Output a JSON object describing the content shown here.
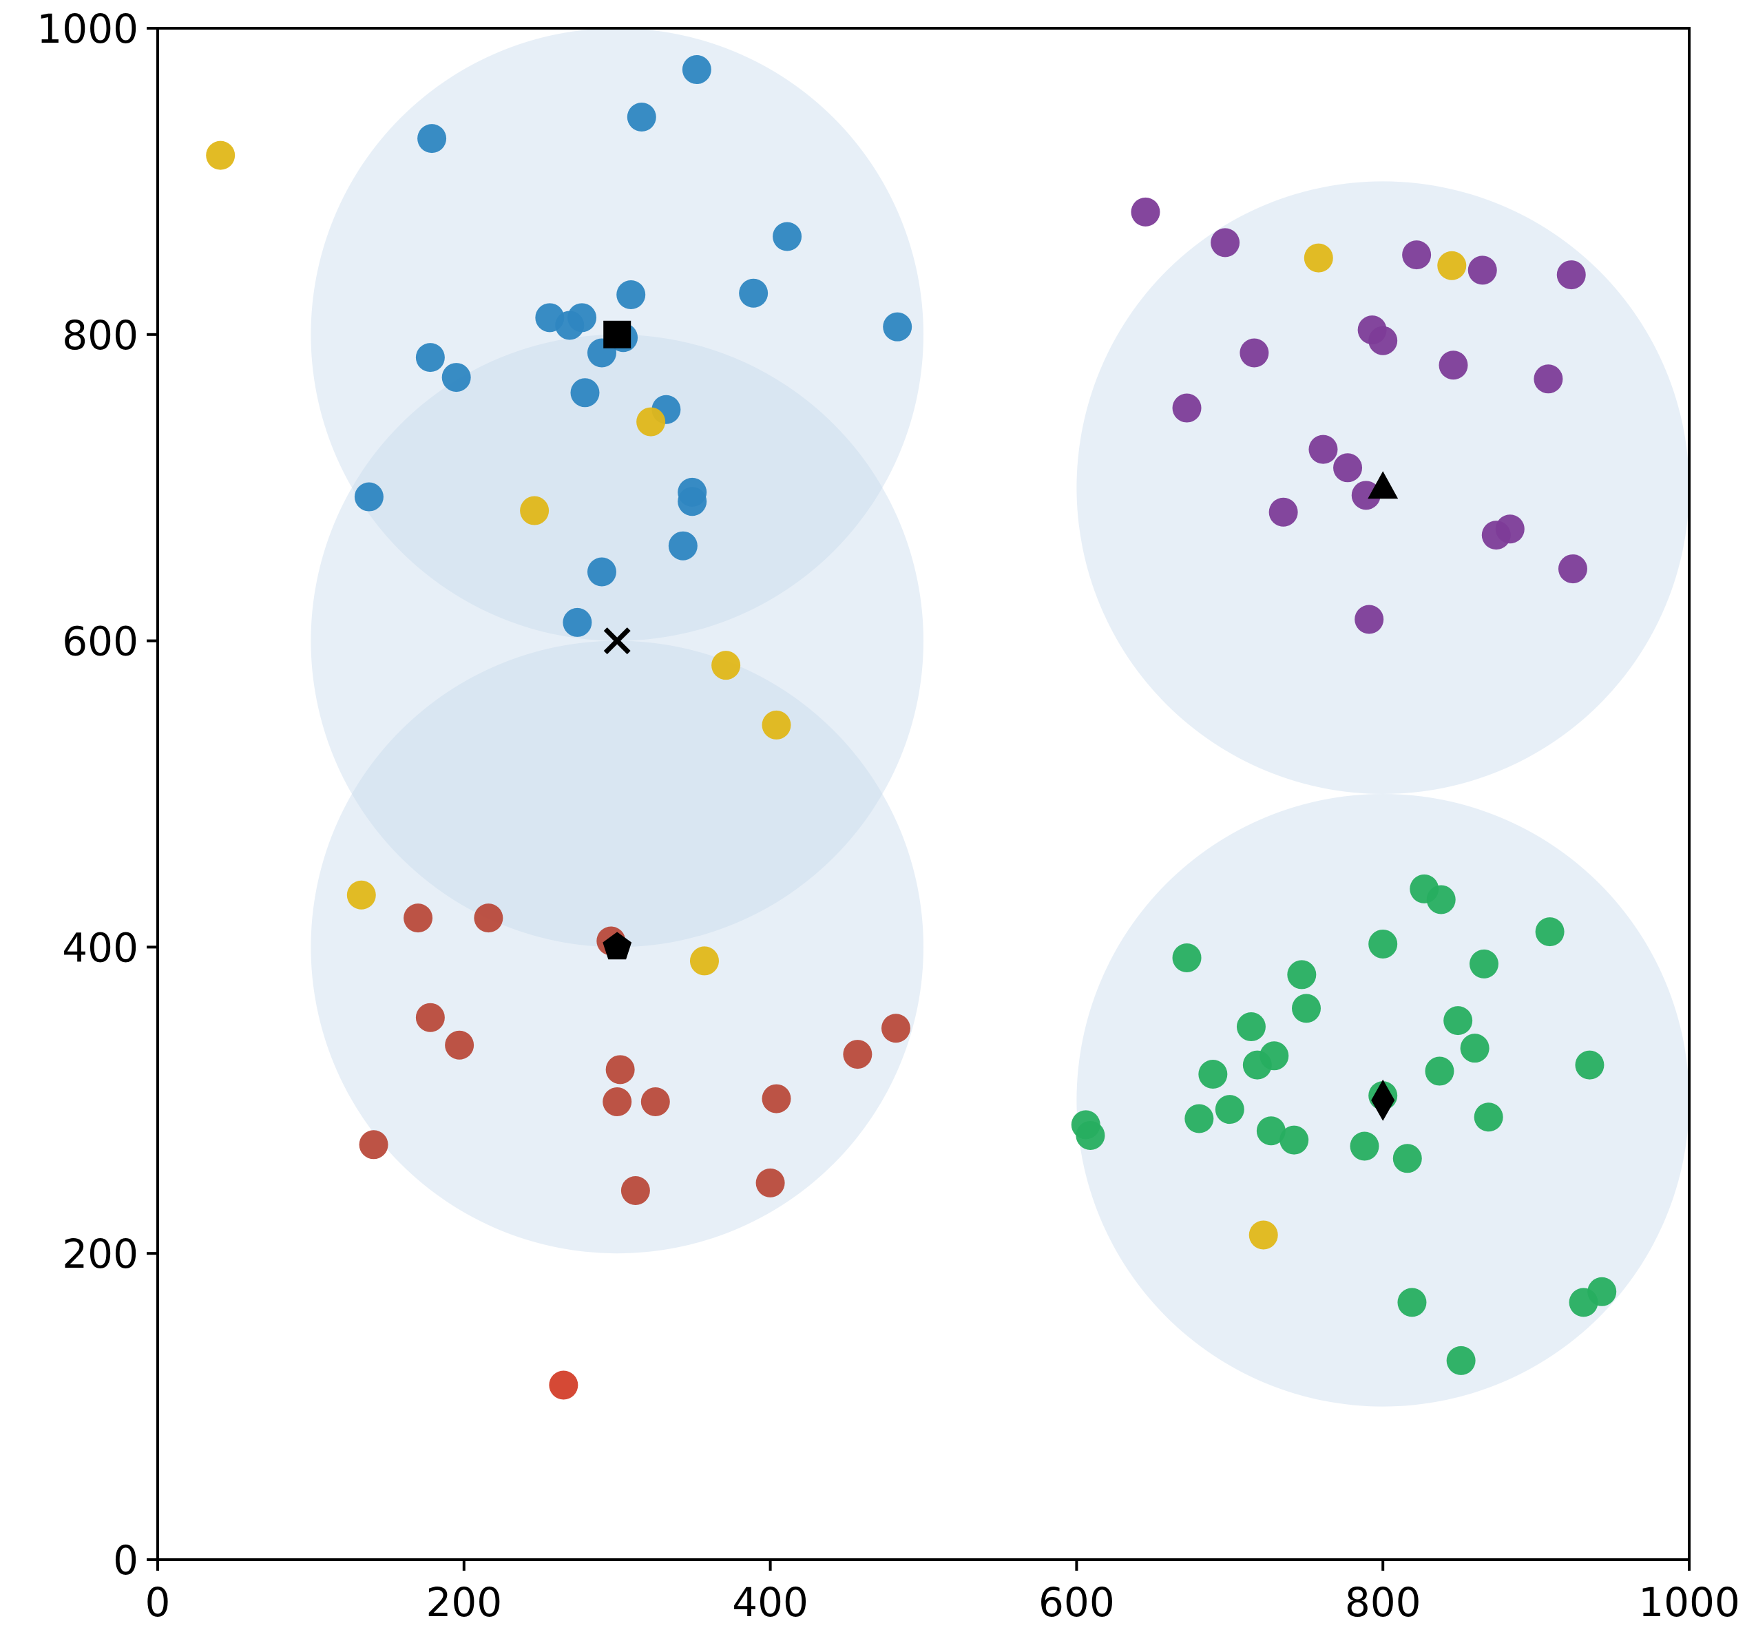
{
  "chart_data": {
    "type": "scatter",
    "title": "",
    "xlabel": "",
    "ylabel": "",
    "xlim": [
      0,
      1000
    ],
    "ylim": [
      0,
      1000
    ],
    "grid": false,
    "x_ticks": [
      0,
      200,
      400,
      600,
      800,
      1000
    ],
    "y_ticks": [
      0,
      200,
      400,
      600,
      800,
      1000
    ],
    "x_tick_labels": [
      "0",
      "200",
      "400",
      "600",
      "800",
      "1000"
    ],
    "y_tick_labels": [
      "0",
      "200",
      "400",
      "600",
      "800",
      "1000"
    ],
    "circle_color": "#c6d9ec",
    "circles": [
      {
        "name": "circle-square",
        "cx": 300,
        "cy": 800,
        "r": 200
      },
      {
        "name": "circle-x",
        "cx": 300,
        "cy": 600,
        "r": 200
      },
      {
        "name": "circle-pentagon",
        "cx": 300,
        "cy": 400,
        "r": 200
      },
      {
        "name": "circle-triangle",
        "cx": 800,
        "cy": 700,
        "r": 200
      },
      {
        "name": "circle-diamond",
        "cx": 800,
        "cy": 300,
        "r": 200
      }
    ],
    "centers": [
      {
        "name": "square",
        "x": 300,
        "y": 800
      },
      {
        "name": "x",
        "x": 300,
        "y": 600
      },
      {
        "name": "pentagon",
        "x": 300,
        "y": 400
      },
      {
        "name": "triangle",
        "x": 800,
        "y": 700
      },
      {
        "name": "diamond",
        "x": 800,
        "y": 300
      }
    ],
    "series": [
      {
        "name": "blue",
        "color": "#2e86c1",
        "points": [
          [
            352,
            973
          ],
          [
            316,
            942
          ],
          [
            179,
            928
          ],
          [
            411,
            864
          ],
          [
            389,
            827
          ],
          [
            309,
            826
          ],
          [
            256,
            811
          ],
          [
            277,
            811
          ],
          [
            269,
            806
          ],
          [
            483,
            805
          ],
          [
            304,
            798
          ],
          [
            290,
            788
          ],
          [
            178,
            785
          ],
          [
            195,
            772
          ],
          [
            279,
            762
          ],
          [
            332,
            751
          ],
          [
            349,
            697
          ],
          [
            349,
            691
          ],
          [
            138,
            694
          ],
          [
            343,
            662
          ],
          [
            290,
            645
          ],
          [
            274,
            612
          ]
        ]
      },
      {
        "name": "purple",
        "color": "#7d3c98",
        "points": [
          [
            645,
            880
          ],
          [
            697,
            860
          ],
          [
            822,
            852
          ],
          [
            865,
            842
          ],
          [
            923,
            839
          ],
          [
            716,
            788
          ],
          [
            793,
            803
          ],
          [
            800,
            796
          ],
          [
            846,
            780
          ],
          [
            908,
            771
          ],
          [
            672,
            752
          ],
          [
            761,
            725
          ],
          [
            777,
            713
          ],
          [
            789,
            695
          ],
          [
            735,
            684
          ],
          [
            883,
            673
          ],
          [
            874,
            669
          ],
          [
            924,
            647
          ],
          [
            791,
            614
          ]
        ]
      },
      {
        "name": "red",
        "color": "#b94a3b",
        "points": [
          [
            170,
            419
          ],
          [
            216,
            419
          ],
          [
            296,
            404
          ],
          [
            178,
            354
          ],
          [
            197,
            336
          ],
          [
            482,
            347
          ],
          [
            457,
            330
          ],
          [
            302,
            320
          ],
          [
            300,
            299
          ],
          [
            325,
            299
          ],
          [
            404,
            301
          ],
          [
            141,
            271
          ],
          [
            312,
            241
          ],
          [
            400,
            246
          ]
        ]
      },
      {
        "name": "red-outlier",
        "color": "#d33f2a",
        "points": [
          [
            265,
            114
          ]
        ]
      },
      {
        "name": "green",
        "color": "#27ae60",
        "points": [
          [
            827,
            438
          ],
          [
            838,
            431
          ],
          [
            909,
            410
          ],
          [
            800,
            402
          ],
          [
            672,
            393
          ],
          [
            866,
            389
          ],
          [
            747,
            382
          ],
          [
            750,
            360
          ],
          [
            849,
            352
          ],
          [
            714,
            348
          ],
          [
            860,
            334
          ],
          [
            729,
            329
          ],
          [
            718,
            323
          ],
          [
            935,
            323
          ],
          [
            837,
            319
          ],
          [
            689,
            317
          ],
          [
            800,
            303
          ],
          [
            700,
            294
          ],
          [
            680,
            288
          ],
          [
            869,
            289
          ],
          [
            606,
            284
          ],
          [
            609,
            277
          ],
          [
            727,
            280
          ],
          [
            742,
            274
          ],
          [
            788,
            270
          ],
          [
            816,
            262
          ],
          [
            819,
            168
          ],
          [
            931,
            168
          ],
          [
            943,
            175
          ],
          [
            851,
            130
          ]
        ]
      },
      {
        "name": "yellow",
        "color": "#e0b719",
        "points": [
          [
            41,
            917
          ],
          [
            758,
            850
          ],
          [
            845,
            845
          ],
          [
            322,
            743
          ],
          [
            246,
            685
          ],
          [
            371,
            584
          ],
          [
            404,
            545
          ],
          [
            133,
            434
          ],
          [
            357,
            391
          ],
          [
            722,
            212
          ]
        ]
      }
    ]
  }
}
